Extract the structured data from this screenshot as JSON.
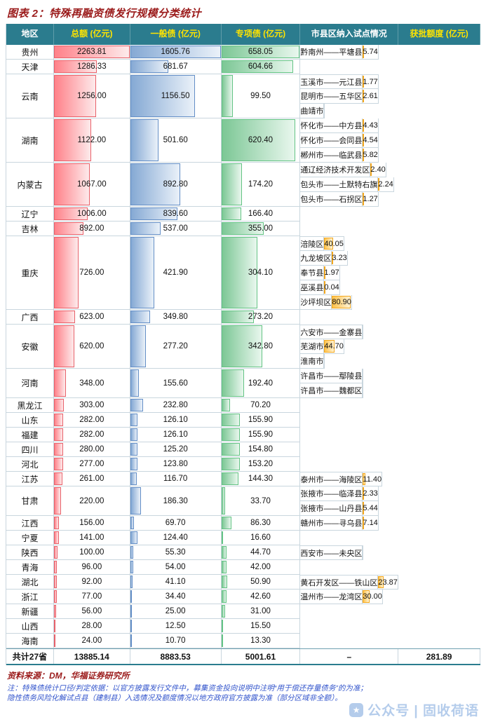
{
  "chart_data": {
    "type": "table",
    "title": "图表 2：特殊再融资债发行规模分类统计",
    "headers": {
      "region": "地区",
      "total": "总额 (亿元)",
      "general": "一般债 (亿元)",
      "special": "专项债 (亿元)",
      "pilot": "市县区纳入试点情况",
      "quota": "获批额度 (亿元)"
    },
    "scales": {
      "total_max": 2263.81,
      "general_max": 1605.76,
      "special_max": 658.05,
      "quota_max": 85
    },
    "groups": [
      {
        "region": "贵州",
        "total": "2263.81",
        "general": "1605.76",
        "special": "658.05",
        "pilots": [
          {
            "name": "黔南州——平塘县",
            "quota": "5.74"
          }
        ]
      },
      {
        "region": "天津",
        "total": "1286.33",
        "general": "681.67",
        "special": "604.66",
        "pilots": []
      },
      {
        "region": "云南",
        "total": "1256.00",
        "general": "1156.50",
        "special": "99.50",
        "pilots": [
          {
            "name": "玉溪市——元江县",
            "quota": "1.77"
          },
          {
            "name": "昆明市——五华区",
            "quota": "2.61"
          },
          {
            "name": "曲靖市",
            "quota": ""
          }
        ]
      },
      {
        "region": "湖南",
        "total": "1122.00",
        "general": "501.60",
        "special": "620.40",
        "pilots": [
          {
            "name": "怀化市——中方县",
            "quota": "4.43"
          },
          {
            "name": "怀化市——会同县",
            "quota": "4.54"
          },
          {
            "name": "郴州市——临武县",
            "quota": "5.82"
          }
        ]
      },
      {
        "region": "内蒙古",
        "total": "1067.00",
        "general": "892.80",
        "special": "174.20",
        "pilots": [
          {
            "name": "通辽经济技术开发区",
            "quota": "2.40"
          },
          {
            "name": "包头市——土默特右旗",
            "quota": "2.24"
          },
          {
            "name": "包头市——石拐区",
            "quota": "1.27"
          }
        ]
      },
      {
        "region": "辽宁",
        "total": "1006.00",
        "general": "839.60",
        "special": "166.40",
        "pilots": []
      },
      {
        "region": "吉林",
        "total": "892.00",
        "general": "537.00",
        "special": "355.00",
        "pilots": []
      },
      {
        "region": "重庆",
        "total": "726.00",
        "general": "421.90",
        "special": "304.10",
        "pilots": [
          {
            "name": "涪陵区",
            "quota": "40.05"
          },
          {
            "name": "九龙坡区",
            "quota": "3.23"
          },
          {
            "name": "奉节县",
            "quota": "1.97"
          },
          {
            "name": "巫溪县",
            "quota": "0.04"
          },
          {
            "name": "沙坪坝区",
            "quota": "80.90"
          }
        ]
      },
      {
        "region": "广西",
        "total": "623.00",
        "general": "349.80",
        "special": "273.20",
        "pilots": []
      },
      {
        "region": "安徽",
        "total": "620.00",
        "general": "277.20",
        "special": "342.80",
        "pilots": [
          {
            "name": "六安市——金寨县",
            "quota": ""
          },
          {
            "name": "芜湖市",
            "quota": "44.70"
          },
          {
            "name": "淮南市",
            "quota": ""
          }
        ]
      },
      {
        "region": "河南",
        "total": "348.00",
        "general": "155.60",
        "special": "192.40",
        "pilots": [
          {
            "name": "许昌市——鄢陵县",
            "quota": ""
          },
          {
            "name": "许昌市——魏都区",
            "quota": ""
          }
        ]
      },
      {
        "region": "黑龙江",
        "total": "303.00",
        "general": "232.80",
        "special": "70.20",
        "pilots": []
      },
      {
        "region": "山东",
        "total": "282.00",
        "general": "126.10",
        "special": "155.90",
        "pilots": []
      },
      {
        "region": "福建",
        "total": "282.00",
        "general": "126.10",
        "special": "155.90",
        "pilots": []
      },
      {
        "region": "四川",
        "total": "280.00",
        "general": "125.20",
        "special": "154.80",
        "pilots": []
      },
      {
        "region": "河北",
        "total": "277.00",
        "general": "123.80",
        "special": "153.20",
        "pilots": []
      },
      {
        "region": "江苏",
        "total": "261.00",
        "general": "116.70",
        "special": "144.30",
        "pilots": [
          {
            "name": "泰州市——海陵区",
            "quota": "11.40"
          }
        ]
      },
      {
        "region": "甘肃",
        "total": "220.00",
        "general": "186.30",
        "special": "33.70",
        "pilots": [
          {
            "name": "张掖市——临泽县",
            "quota": "2.33"
          },
          {
            "name": "张掖市——山丹县",
            "quota": "5.44"
          }
        ]
      },
      {
        "region": "江西",
        "total": "156.00",
        "general": "69.70",
        "special": "86.30",
        "pilots": [
          {
            "name": "赣州市——寻乌县",
            "quota": "7.14"
          }
        ]
      },
      {
        "region": "宁夏",
        "total": "141.00",
        "general": "124.40",
        "special": "16.60",
        "pilots": []
      },
      {
        "region": "陕西",
        "total": "100.00",
        "general": "55.30",
        "special": "44.70",
        "pilots": [
          {
            "name": "西安市——未央区",
            "quota": ""
          }
        ]
      },
      {
        "region": "青海",
        "total": "96.00",
        "general": "54.00",
        "special": "42.00",
        "pilots": []
      },
      {
        "region": "湖北",
        "total": "92.00",
        "general": "41.10",
        "special": "50.90",
        "pilots": [
          {
            "name": "黄石开发区——铁山区",
            "quota": "23.87"
          }
        ]
      },
      {
        "region": "浙江",
        "total": "77.00",
        "general": "34.40",
        "special": "42.60",
        "pilots": [
          {
            "name": "温州市——龙湾区",
            "quota": "30.00"
          }
        ]
      },
      {
        "region": "新疆",
        "total": "56.00",
        "general": "25.00",
        "special": "31.00",
        "pilots": []
      },
      {
        "region": "山西",
        "total": "28.00",
        "general": "12.50",
        "special": "15.50",
        "pilots": []
      },
      {
        "region": "海南",
        "total": "24.00",
        "general": "10.70",
        "special": "13.30",
        "pilots": []
      }
    ],
    "total_row": {
      "label": "共计27省",
      "total": "13885.14",
      "general": "8883.53",
      "special": "5001.61",
      "pilot": "–",
      "quota": "281.89"
    }
  },
  "footer": {
    "source": "资料来源：DM，华福证券研究所",
    "note1": "注：特殊债统计口径/判定依据：以官方披露发行文件中，募集资金投向说明中注明“用于偿还存量债务”的为准；",
    "note2": "隐性债务风险化解试点县（建制县）入选情况及额度情况以地方政府官方披露为准（部分区域非全额）。",
    "watermark": "公众号 | 固收荷语"
  },
  "colors": {
    "header_bg": "#2B7C8E",
    "header_text": "#FFFFFF",
    "header_accent": "#FFE400",
    "bar_red": "#FF8189",
    "bar_blue": "#638EC6",
    "bar_green": "#63C384",
    "bar_orange": "#FFB628",
    "title_color": "#9B1B1B",
    "note_color": "#3355CC",
    "grid": "#C9D6DE"
  }
}
